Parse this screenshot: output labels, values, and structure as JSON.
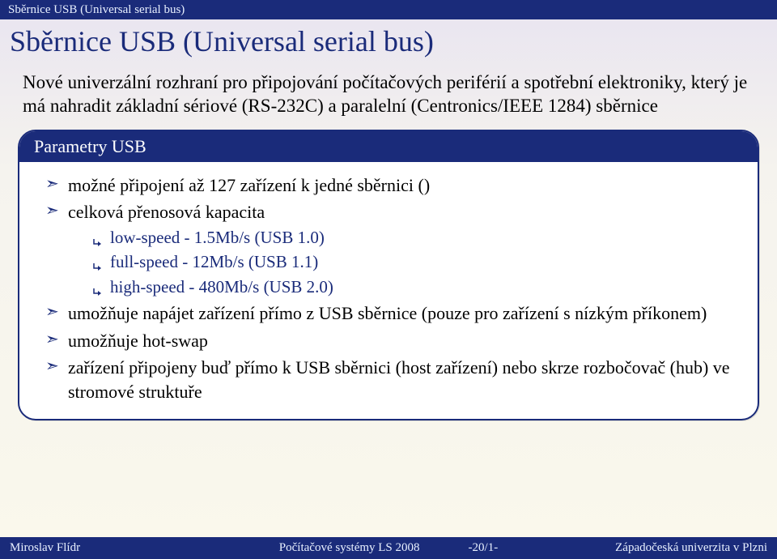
{
  "header": {
    "breadcrumb": "Sběrnice USB (Universal serial bus)",
    "title": "Sběrnice USB (Universal serial bus)"
  },
  "intro": "Nové univerzální rozhraní pro připojování počítačových periférií a spotřební elektroniky, který je má nahradit základní sériové (RS-232C) a paralelní (Centronics/IEEE 1284) sběrnice",
  "panel": {
    "title": "Parametry USB",
    "items": [
      {
        "text": "možné připojení až 127 zařízení k jedné sběrnici ()"
      },
      {
        "text": "celková přenosová kapacita",
        "sub": [
          "low-speed - 1.5Mb/s (USB 1.0)",
          "full-speed - 12Mb/s (USB 1.1)",
          "high-speed - 480Mb/s (USB 2.0)"
        ]
      },
      {
        "text": "umožňuje napájet zařízení přímo z USB sběrnice (pouze pro zařízení s nízkým příkonem)"
      },
      {
        "text": "umožňuje hot-swap"
      },
      {
        "text": "zařízení připojeny buď přímo k USB sběrnici (host zařízení) nebo skrze rozbočovač (hub) ve stromové struktuře"
      }
    ]
  },
  "footer": {
    "left": "Miroslav Flídr",
    "center": "Počítačové systémy LS 2008",
    "page": "-20/1-",
    "right": "Západočeská univerzita v Plzni"
  },
  "colors": {
    "brand": "#1a2b7a",
    "bg_top": "#e8e4f0",
    "bg_bottom": "#faf8ec",
    "panel_bg": "#ffffff"
  }
}
